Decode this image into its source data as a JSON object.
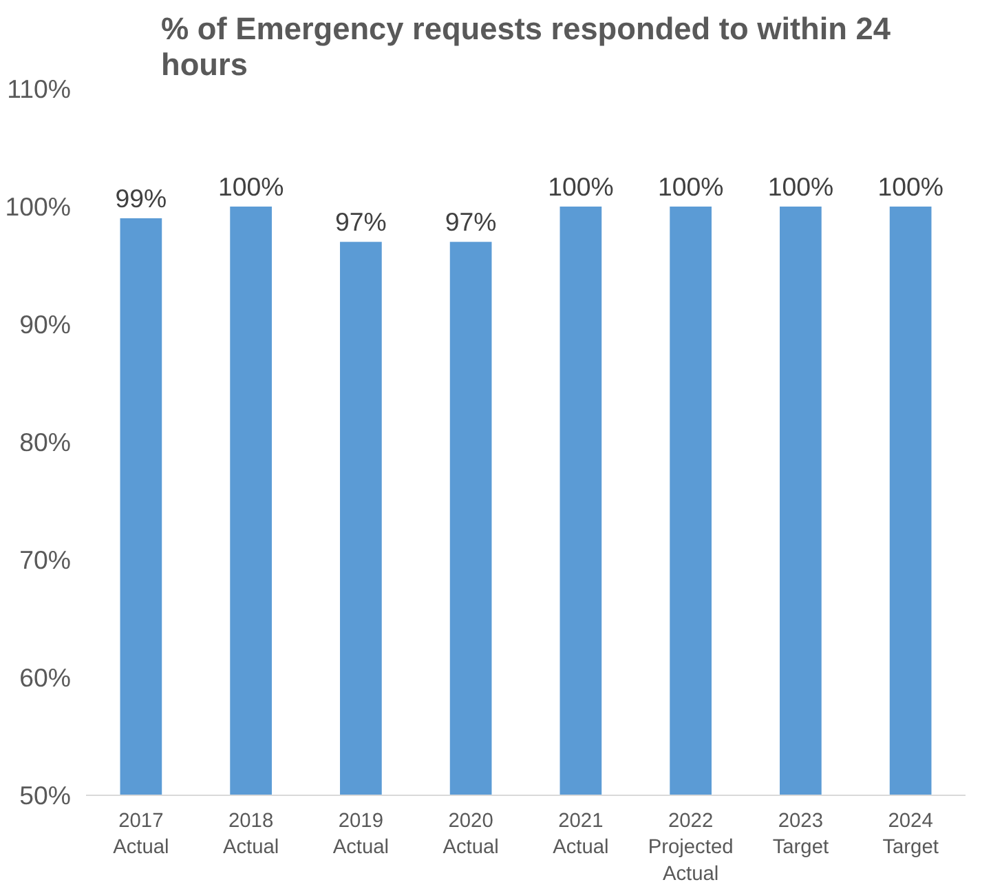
{
  "chart_data": {
    "type": "bar",
    "title": "% of Emergency requests responded to within 24\nhours",
    "categories": [
      "2017\nActual",
      "2018\nActual",
      "2019\nActual",
      "2020\nActual",
      "2021\nActual",
      "2022\nProjected\nActual",
      "2023\nTarget",
      "2024\nTarget"
    ],
    "values": [
      99,
      100,
      97,
      97,
      100,
      100,
      100,
      100
    ],
    "value_labels": [
      "99%",
      "100%",
      "97%",
      "97%",
      "100%",
      "100%",
      "100%",
      "100%"
    ],
    "color": "#5b9bd5",
    "ylim": [
      50,
      110
    ],
    "yticks": [
      {
        "value": 50,
        "label": "50%"
      },
      {
        "value": 60,
        "label": "60%"
      },
      {
        "value": 70,
        "label": "70%"
      },
      {
        "value": 80,
        "label": "80%"
      },
      {
        "value": 90,
        "label": "90%"
      },
      {
        "value": 100,
        "label": "100%"
      },
      {
        "value": 110,
        "label": "110%"
      }
    ],
    "grid": false
  }
}
